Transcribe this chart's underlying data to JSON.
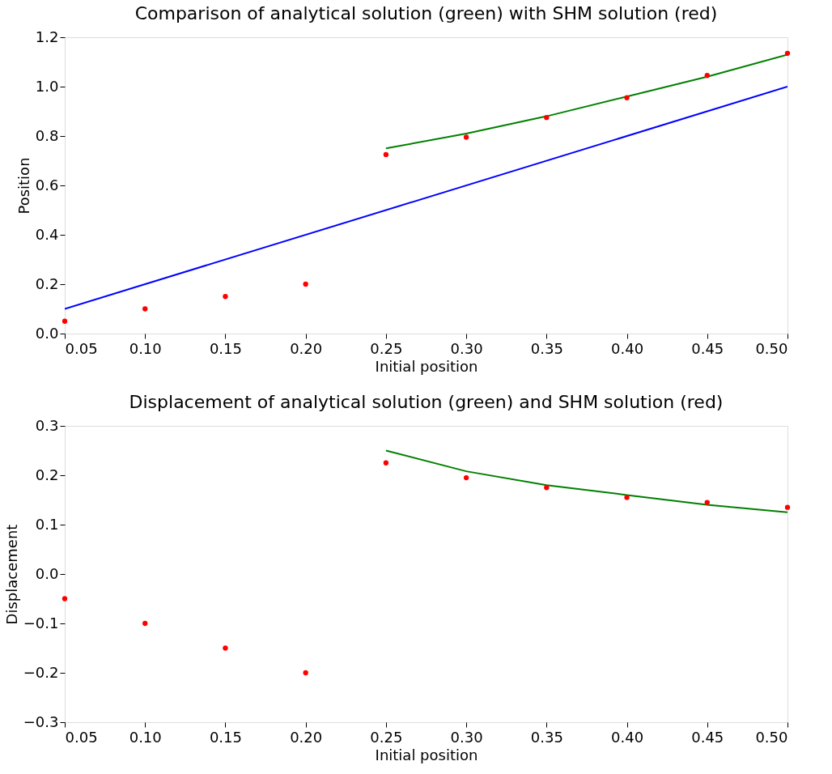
{
  "chart_data": [
    {
      "type": "scatter",
      "title": "Comparison of analytical solution (green) with SHM solution (red)",
      "xlabel": "Initial position",
      "ylabel": "Position",
      "xlim": [
        0.05,
        0.5
      ],
      "xticks": [
        0.05,
        {
          "value": 0.1,
          "label": "0.10"
        },
        0.15,
        {
          "value": 0.2,
          "label": "0.20"
        },
        0.25,
        {
          "value": 0.3,
          "label": "0.30"
        },
        0.35,
        {
          "value": 0.4,
          "label": "0.40"
        },
        0.45,
        {
          "value": 0.5,
          "label": "0.50"
        }
      ],
      "ylim": [
        0,
        1.2
      ],
      "yticks": [
        {
          "value": 0,
          "label": "0.0"
        },
        0.2,
        0.4,
        0.6,
        0.8,
        {
          "value": 1,
          "label": "1.0"
        },
        1.2
      ],
      "grid": false,
      "series": [
        {
          "type": "line",
          "color": "#0000ff",
          "x": [
            0.05,
            0.5
          ],
          "values": [
            0.1,
            1.0
          ]
        },
        {
          "type": "line",
          "color": "#008000",
          "x": [
            0.25,
            0.3,
            0.35,
            0.4,
            0.45,
            0.5
          ],
          "values": [
            0.75,
            0.81,
            0.88,
            0.96,
            1.04,
            1.13
          ]
        },
        {
          "type": "scatter",
          "marker": "circle",
          "color": "#ff0000",
          "x": [
            0.05,
            0.1,
            0.15,
            0.2,
            0.25,
            0.3,
            0.35,
            0.4,
            0.45,
            0.5
          ],
          "values": [
            0.05,
            0.1,
            0.15,
            0.2,
            0.725,
            0.795,
            0.875,
            0.955,
            1.045,
            1.135
          ]
        }
      ]
    },
    {
      "type": "scatter",
      "title": "Displacement of analytical solution (green) and SHM solution (red)",
      "xlabel": "Initial position",
      "ylabel": "Displacement",
      "xlim": [
        0.05,
        0.5
      ],
      "xticks": [
        0.05,
        {
          "value": 0.1,
          "label": "0.10"
        },
        0.15,
        {
          "value": 0.2,
          "label": "0.20"
        },
        0.25,
        {
          "value": 0.3,
          "label": "0.30"
        },
        0.35,
        {
          "value": 0.4,
          "label": "0.40"
        },
        0.45,
        {
          "value": 0.5,
          "label": "0.50"
        }
      ],
      "ylim": [
        -0.3,
        0.3
      ],
      "yticks": [
        {
          "value": -0.3,
          "label": "−0.3"
        },
        {
          "value": -0.2,
          "label": "−0.2"
        },
        {
          "value": -0.1,
          "label": "−0.1"
        },
        {
          "value": 0,
          "label": "0.0"
        },
        0.1,
        0.2,
        0.3
      ],
      "grid": false,
      "series": [
        {
          "type": "line",
          "color": "#008000",
          "x": [
            0.25,
            0.3,
            0.35,
            0.4,
            0.45,
            0.5
          ],
          "values": [
            0.25,
            0.208,
            0.18,
            0.16,
            0.14,
            0.125
          ]
        },
        {
          "type": "scatter",
          "marker": "circle",
          "color": "#ff0000",
          "x": [
            0.05,
            0.1,
            0.15,
            0.2,
            0.25,
            0.3,
            0.35,
            0.4,
            0.45,
            0.5
          ],
          "values": [
            -0.05,
            -0.1,
            -0.15,
            -0.2,
            0.225,
            0.195,
            0.175,
            0.155,
            0.145,
            0.135
          ]
        }
      ]
    }
  ]
}
